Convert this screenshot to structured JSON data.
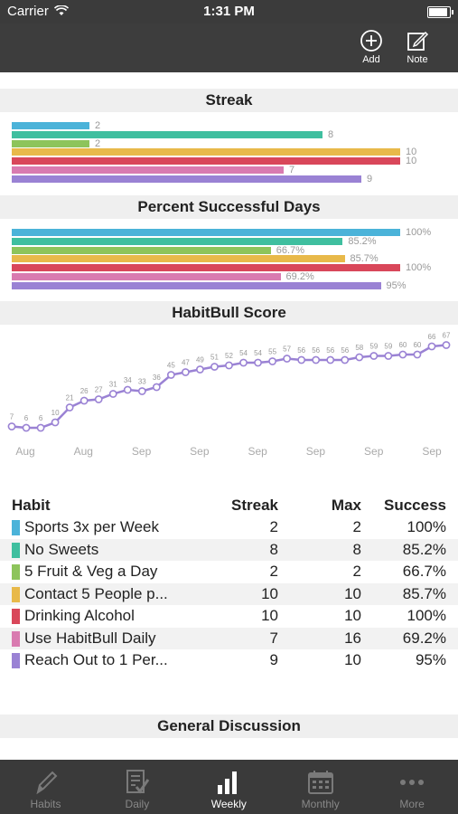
{
  "status_bar": {
    "carrier": "Carrier",
    "time": "1:31 PM"
  },
  "nav": {
    "add_label": "Add",
    "note_label": "Note"
  },
  "sections": {
    "streak": "Streak",
    "percent": "Percent Successful Days",
    "score": "HabitBull Score",
    "discussion": "General Discussion"
  },
  "colors": {
    "blue": "#4bb3d9",
    "teal": "#3fbf9f",
    "green": "#8dc45b",
    "yellow": "#e8b94a",
    "red": "#d9475a",
    "pink": "#d97bb0",
    "purple": "#9a82d4"
  },
  "chart_data": [
    {
      "type": "bar",
      "title": "Streak",
      "categories": [
        "Sports 3x per Week",
        "No Sweets",
        "5 Fruit & Veg a Day",
        "Contact 5 People p...",
        "Drinking Alcohol",
        "Use HabitBull Daily",
        "Reach Out to 1 Per..."
      ],
      "values": [
        2,
        8,
        2,
        10,
        10,
        7,
        9
      ],
      "labels": [
        "2",
        "8",
        "2",
        "10",
        "10",
        "7",
        "9"
      ],
      "max": 10
    },
    {
      "type": "bar",
      "title": "Percent Successful Days",
      "categories": [
        "Sports 3x per Week",
        "No Sweets",
        "5 Fruit & Veg a Day",
        "Contact 5 People p...",
        "Drinking Alcohol",
        "Use HabitBull Daily",
        "Reach Out to 1 Per..."
      ],
      "values": [
        100,
        85.2,
        66.7,
        85.7,
        100,
        69.2,
        95
      ],
      "labels": [
        "100%",
        "85.2%",
        "66.7%",
        "85.7%",
        "100%",
        "69.2%",
        "95%"
      ],
      "max": 100
    },
    {
      "type": "line",
      "title": "HabitBull Score",
      "values": [
        7,
        6,
        6,
        10,
        21,
        26,
        27,
        31,
        34,
        33,
        36,
        45,
        47,
        49,
        51,
        52,
        54,
        54,
        55,
        57,
        56,
        56,
        56,
        56,
        58,
        59,
        59,
        60,
        60,
        66,
        67
      ],
      "x_tick_labels": [
        "Aug",
        "Aug",
        "Sep",
        "Sep",
        "Sep",
        "Sep",
        "Sep",
        "Sep"
      ],
      "ylim": [
        0,
        70
      ],
      "series_color": "#9a82d4"
    }
  ],
  "table": {
    "headers": {
      "habit": "Habit",
      "streak": "Streak",
      "max": "Max",
      "success": "Success"
    },
    "rows": [
      {
        "name": "Sports 3x per Week",
        "streak": "2",
        "max": "2",
        "success": "100%",
        "color": "#4bb3d9"
      },
      {
        "name": "No Sweets",
        "streak": "8",
        "max": "8",
        "success": "85.2%",
        "color": "#3fbf9f"
      },
      {
        "name": "5 Fruit & Veg a Day",
        "streak": "2",
        "max": "2",
        "success": "66.7%",
        "color": "#8dc45b"
      },
      {
        "name": "Contact 5 People p...",
        "streak": "10",
        "max": "10",
        "success": "85.7%",
        "color": "#e8b94a"
      },
      {
        "name": "Drinking Alcohol",
        "streak": "10",
        "max": "10",
        "success": "100%",
        "color": "#d9475a"
      },
      {
        "name": "Use HabitBull Daily",
        "streak": "7",
        "max": "16",
        "success": "69.2%",
        "color": "#d97bb0"
      },
      {
        "name": "Reach Out to 1 Per...",
        "streak": "9",
        "max": "10",
        "success": "95%",
        "color": "#9a82d4"
      }
    ]
  },
  "tabs": [
    {
      "label": "Habits",
      "icon": "pencil-icon"
    },
    {
      "label": "Daily",
      "icon": "checklist-icon"
    },
    {
      "label": "Weekly",
      "icon": "bar-chart-icon"
    },
    {
      "label": "Monthly",
      "icon": "calendar-icon"
    },
    {
      "label": "More",
      "icon": "more-dots-icon"
    }
  ]
}
